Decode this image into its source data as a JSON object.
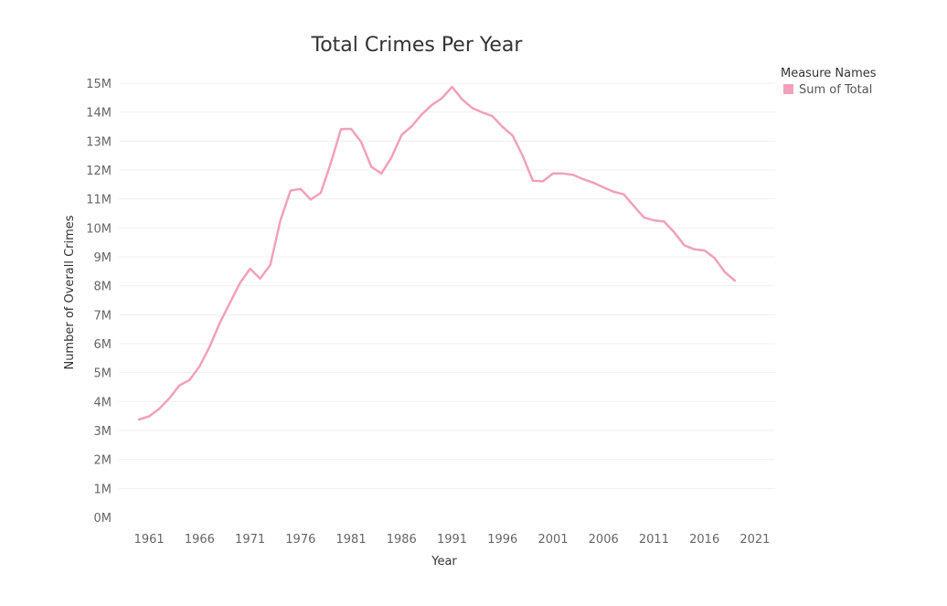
{
  "chart_data": {
    "type": "line",
    "title": "Total Crimes Per Year",
    "xlabel": "Year",
    "ylabel": "Number of Overall Crimes",
    "legend": {
      "title": "Measure Names",
      "position": "top-right"
    },
    "x": [
      1960,
      1961,
      1962,
      1963,
      1964,
      1965,
      1966,
      1967,
      1968,
      1969,
      1970,
      1971,
      1972,
      1973,
      1974,
      1975,
      1976,
      1977,
      1978,
      1979,
      1980,
      1981,
      1982,
      1983,
      1984,
      1985,
      1986,
      1987,
      1988,
      1989,
      1990,
      1991,
      1992,
      1993,
      1994,
      1995,
      1996,
      1997,
      1998,
      1999,
      2000,
      2001,
      2002,
      2003,
      2004,
      2005,
      2006,
      2007,
      2008,
      2009,
      2010,
      2011,
      2012,
      2013,
      2014,
      2015,
      2016,
      2017,
      2018,
      2019
    ],
    "series": [
      {
        "name": "Sum of Total",
        "color": "#f2a0bb",
        "values": [
          3.38,
          3.49,
          3.75,
          4.11,
          4.56,
          4.74,
          5.22,
          5.9,
          6.72,
          7.41,
          8.1,
          8.59,
          8.25,
          8.72,
          10.25,
          11.29,
          11.35,
          10.98,
          11.21,
          12.25,
          13.41,
          13.42,
          12.97,
          12.11,
          11.88,
          12.43,
          13.21,
          13.51,
          13.92,
          14.25,
          14.48,
          14.87,
          14.44,
          14.14,
          13.99,
          13.86,
          13.49,
          13.19,
          12.49,
          11.63,
          11.61,
          11.88,
          11.88,
          11.83,
          11.68,
          11.56,
          11.4,
          11.25,
          11.16,
          10.76,
          10.36,
          10.26,
          10.22,
          9.85,
          9.4,
          9.26,
          9.22,
          8.96,
          8.48,
          8.18
        ]
      }
    ],
    "y_ticks": [
      "0M",
      "1M",
      "2M",
      "3M",
      "4M",
      "5M",
      "6M",
      "7M",
      "8M",
      "9M",
      "10M",
      "11M",
      "12M",
      "13M",
      "14M",
      "15M"
    ],
    "x_ticks": [
      "1961",
      "1966",
      "1971",
      "1976",
      "1981",
      "1986",
      "1991",
      "1996",
      "2001",
      "2006",
      "2011",
      "2016",
      "2021"
    ],
    "ylim": [
      0,
      15
    ],
    "xlim": [
      1958,
      2023
    ],
    "grid": true
  }
}
